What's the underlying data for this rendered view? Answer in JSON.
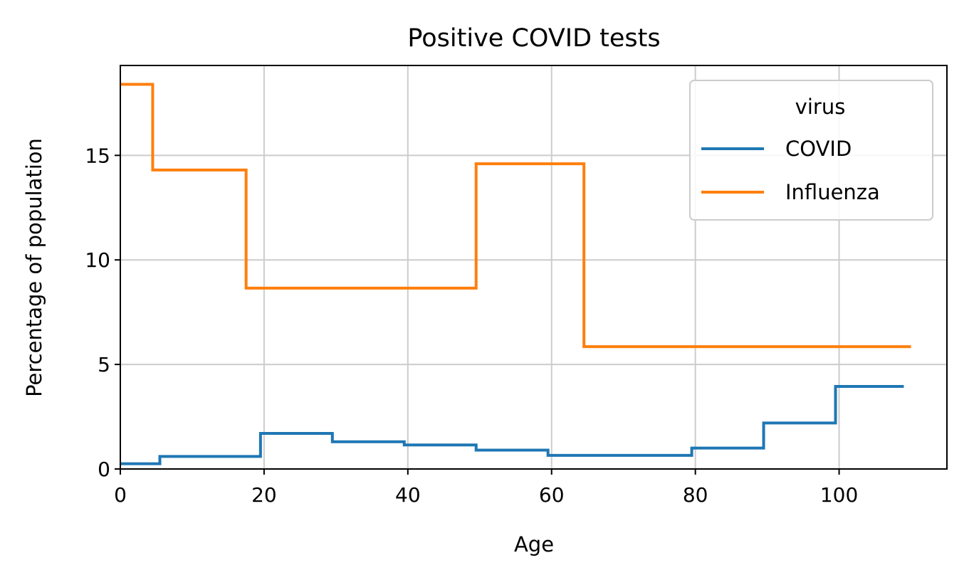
{
  "chart_data": {
    "type": "line",
    "step": "post",
    "title": "Positive COVID tests",
    "xlabel": "Age",
    "ylabel": "Percentage of population",
    "xlim": [
      0,
      115
    ],
    "ylim": [
      0,
      19.3
    ],
    "xticks": [
      0,
      20,
      40,
      60,
      80,
      100
    ],
    "yticks": [
      0,
      5,
      10,
      15
    ],
    "grid": true,
    "legend": {
      "title": "virus",
      "position": "top-right"
    },
    "series": [
      {
        "name": "COVID",
        "color": "#1f77b4",
        "x": [
          0,
          5.5,
          19.5,
          29.5,
          39.5,
          49.5,
          59.5,
          79.5,
          89.5,
          99.5,
          109
        ],
        "y": [
          0.25,
          0.6,
          1.7,
          1.3,
          1.15,
          0.9,
          0.65,
          1.0,
          2.2,
          3.95,
          3.95
        ]
      },
      {
        "name": "Influenza",
        "color": "#ff7f0e",
        "x": [
          0,
          4.5,
          17.5,
          49.5,
          64.5,
          110
        ],
        "y": [
          18.4,
          14.3,
          8.65,
          14.6,
          5.85,
          5.85
        ]
      }
    ]
  }
}
